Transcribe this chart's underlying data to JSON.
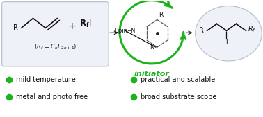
{
  "bg_color": "#ffffff",
  "reactant_box_color": "#eef2f8",
  "product_box_color": "#eef2f8",
  "circle_color": "#1db31d",
  "arrow_color": "#333333",
  "green_color": "#1db31d",
  "bullet_color": "#1db31d",
  "text_color": "#111111",
  "bullet_points_left": [
    "mild temperature",
    "metal and photo free"
  ],
  "bullet_points_right": [
    "practical and scalable",
    "broad substrate scope"
  ],
  "initiator_label": "initiator"
}
